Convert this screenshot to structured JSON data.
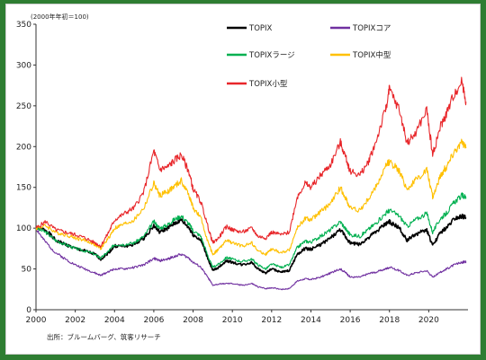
{
  "chart_data": {
    "type": "line",
    "unit_label": "(2000年年初＝100)",
    "source": "出所：ブルームバーグ、筑客リサーチ",
    "ylim": [
      0,
      350
    ],
    "yticks": [
      "0",
      "50",
      "100",
      "150",
      "200",
      "250",
      "300",
      "350"
    ],
    "xlim": [
      2000,
      2022
    ],
    "xticks": [
      "2000",
      "2002",
      "2004",
      "2006",
      "2008",
      "2010",
      "2012",
      "2014",
      "2016",
      "2018",
      "2020"
    ],
    "grid": false,
    "legend_position": "top-right",
    "series": [
      {
        "name": "TOPIX",
        "color": "#000000",
        "points": [
          [
            2000,
            100
          ],
          [
            2000.5,
            98
          ],
          [
            2001,
            85
          ],
          [
            2001.5,
            80
          ],
          [
            2002,
            75
          ],
          [
            2002.5,
            72
          ],
          [
            2003,
            68
          ],
          [
            2003.3,
            62
          ],
          [
            2003.7,
            70
          ],
          [
            2004,
            78
          ],
          [
            2004.5,
            78
          ],
          [
            2005,
            80
          ],
          [
            2005.5,
            88
          ],
          [
            2006,
            103
          ],
          [
            2006.3,
            95
          ],
          [
            2006.7,
            100
          ],
          [
            2007,
            105
          ],
          [
            2007.4,
            110
          ],
          [
            2007.8,
            100
          ],
          [
            2008,
            92
          ],
          [
            2008.4,
            85
          ],
          [
            2008.8,
            60
          ],
          [
            2009,
            48
          ],
          [
            2009.3,
            52
          ],
          [
            2009.7,
            60
          ],
          [
            2010,
            58
          ],
          [
            2010.5,
            55
          ],
          [
            2011,
            58
          ],
          [
            2011.3,
            50
          ],
          [
            2011.7,
            45
          ],
          [
            2012,
            50
          ],
          [
            2012.5,
            46
          ],
          [
            2012.9,
            48
          ],
          [
            2013.3,
            68
          ],
          [
            2013.7,
            75
          ],
          [
            2014,
            74
          ],
          [
            2014.5,
            80
          ],
          [
            2015,
            88
          ],
          [
            2015.5,
            98
          ],
          [
            2015.8,
            88
          ],
          [
            2016,
            82
          ],
          [
            2016.5,
            80
          ],
          [
            2016.9,
            88
          ],
          [
            2017.3,
            95
          ],
          [
            2017.8,
            105
          ],
          [
            2018,
            108
          ],
          [
            2018.5,
            100
          ],
          [
            2018.9,
            85
          ],
          [
            2019.3,
            92
          ],
          [
            2019.9,
            98
          ],
          [
            2020.2,
            78
          ],
          [
            2020.6,
            95
          ],
          [
            2020.9,
            100
          ],
          [
            2021.3,
            112
          ],
          [
            2021.7,
            115
          ],
          [
            2021.9,
            113
          ]
        ]
      },
      {
        "name": "TOPIXコア",
        "color": "#7030a0",
        "points": [
          [
            2000,
            100
          ],
          [
            2000.4,
            85
          ],
          [
            2001,
            70
          ],
          [
            2001.5,
            62
          ],
          [
            2002,
            55
          ],
          [
            2002.5,
            50
          ],
          [
            2003,
            45
          ],
          [
            2003.3,
            42
          ],
          [
            2003.7,
            47
          ],
          [
            2004,
            50
          ],
          [
            2004.5,
            50
          ],
          [
            2005,
            52
          ],
          [
            2005.5,
            55
          ],
          [
            2006,
            63
          ],
          [
            2006.3,
            60
          ],
          [
            2006.7,
            62
          ],
          [
            2007,
            65
          ],
          [
            2007.4,
            68
          ],
          [
            2007.8,
            63
          ],
          [
            2008,
            58
          ],
          [
            2008.4,
            52
          ],
          [
            2008.8,
            38
          ],
          [
            2009,
            30
          ],
          [
            2009.5,
            32
          ],
          [
            2010,
            32
          ],
          [
            2010.5,
            30
          ],
          [
            2011,
            32
          ],
          [
            2011.3,
            28
          ],
          [
            2011.7,
            26
          ],
          [
            2012,
            27
          ],
          [
            2012.5,
            25
          ],
          [
            2012.9,
            26
          ],
          [
            2013.3,
            35
          ],
          [
            2013.7,
            38
          ],
          [
            2014,
            37
          ],
          [
            2014.5,
            40
          ],
          [
            2015,
            45
          ],
          [
            2015.5,
            50
          ],
          [
            2015.8,
            45
          ],
          [
            2016,
            40
          ],
          [
            2016.5,
            40
          ],
          [
            2016.9,
            44
          ],
          [
            2017.3,
            46
          ],
          [
            2017.8,
            50
          ],
          [
            2018,
            52
          ],
          [
            2018.5,
            48
          ],
          [
            2018.9,
            42
          ],
          [
            2019.3,
            45
          ],
          [
            2019.9,
            48
          ],
          [
            2020.2,
            40
          ],
          [
            2020.6,
            46
          ],
          [
            2020.9,
            50
          ],
          [
            2021.3,
            55
          ],
          [
            2021.7,
            58
          ],
          [
            2021.9,
            59
          ]
        ]
      },
      {
        "name": "TOPIXラージ",
        "color": "#00b050",
        "points": [
          [
            2000,
            100
          ],
          [
            2000.5,
            95
          ],
          [
            2001,
            85
          ],
          [
            2001.5,
            80
          ],
          [
            2002,
            75
          ],
          [
            2002.5,
            72
          ],
          [
            2003,
            68
          ],
          [
            2003.3,
            63
          ],
          [
            2003.7,
            72
          ],
          [
            2004,
            80
          ],
          [
            2004.5,
            80
          ],
          [
            2005,
            82
          ],
          [
            2005.5,
            90
          ],
          [
            2006,
            108
          ],
          [
            2006.3,
            100
          ],
          [
            2006.7,
            104
          ],
          [
            2007,
            110
          ],
          [
            2007.4,
            115
          ],
          [
            2007.8,
            105
          ],
          [
            2008,
            97
          ],
          [
            2008.4,
            90
          ],
          [
            2008.8,
            63
          ],
          [
            2009,
            52
          ],
          [
            2009.3,
            56
          ],
          [
            2009.7,
            64
          ],
          [
            2010,
            62
          ],
          [
            2010.5,
            59
          ],
          [
            2011,
            62
          ],
          [
            2011.3,
            55
          ],
          [
            2011.7,
            50
          ],
          [
            2012,
            56
          ],
          [
            2012.5,
            52
          ],
          [
            2012.9,
            55
          ],
          [
            2013.3,
            76
          ],
          [
            2013.7,
            84
          ],
          [
            2014,
            83
          ],
          [
            2014.5,
            90
          ],
          [
            2015,
            98
          ],
          [
            2015.5,
            108
          ],
          [
            2015.8,
            98
          ],
          [
            2016,
            92
          ],
          [
            2016.5,
            90
          ],
          [
            2016.9,
            98
          ],
          [
            2017.3,
            106
          ],
          [
            2017.8,
            118
          ],
          [
            2018,
            122
          ],
          [
            2018.5,
            115
          ],
          [
            2018.9,
            102
          ],
          [
            2019.3,
            110
          ],
          [
            2019.9,
            118
          ],
          [
            2020.2,
            95
          ],
          [
            2020.6,
            112
          ],
          [
            2020.9,
            118
          ],
          [
            2021.3,
            132
          ],
          [
            2021.7,
            140
          ],
          [
            2021.9,
            138
          ]
        ]
      },
      {
        "name": "TOPIX中型",
        "color": "#ffc000",
        "points": [
          [
            2000,
            100
          ],
          [
            2000.5,
            103
          ],
          [
            2001,
            95
          ],
          [
            2001.5,
            92
          ],
          [
            2002,
            88
          ],
          [
            2002.5,
            85
          ],
          [
            2003,
            80
          ],
          [
            2003.3,
            75
          ],
          [
            2003.7,
            88
          ],
          [
            2004,
            100
          ],
          [
            2004.5,
            105
          ],
          [
            2005,
            110
          ],
          [
            2005.5,
            125
          ],
          [
            2006,
            155
          ],
          [
            2006.3,
            140
          ],
          [
            2006.7,
            145
          ],
          [
            2007,
            150
          ],
          [
            2007.4,
            158
          ],
          [
            2007.8,
            140
          ],
          [
            2008,
            125
          ],
          [
            2008.4,
            112
          ],
          [
            2008.8,
            80
          ],
          [
            2009,
            68
          ],
          [
            2009.3,
            74
          ],
          [
            2009.7,
            85
          ],
          [
            2010,
            82
          ],
          [
            2010.5,
            78
          ],
          [
            2011,
            82
          ],
          [
            2011.3,
            72
          ],
          [
            2011.7,
            68
          ],
          [
            2012,
            74
          ],
          [
            2012.5,
            70
          ],
          [
            2012.9,
            73
          ],
          [
            2013.3,
            100
          ],
          [
            2013.7,
            112
          ],
          [
            2014,
            110
          ],
          [
            2014.5,
            120
          ],
          [
            2015,
            130
          ],
          [
            2015.5,
            150
          ],
          [
            2015.8,
            135
          ],
          [
            2016,
            125
          ],
          [
            2016.5,
            122
          ],
          [
            2016.9,
            135
          ],
          [
            2017.3,
            150
          ],
          [
            2017.8,
            175
          ],
          [
            2018,
            182
          ],
          [
            2018.5,
            170
          ],
          [
            2018.9,
            148
          ],
          [
            2019.3,
            158
          ],
          [
            2019.9,
            172
          ],
          [
            2020.2,
            138
          ],
          [
            2020.6,
            165
          ],
          [
            2020.9,
            175
          ],
          [
            2021.3,
            195
          ],
          [
            2021.7,
            205
          ],
          [
            2021.9,
            198
          ]
        ]
      },
      {
        "name": "TOPIX小型",
        "color": "#e8262a",
        "points": [
          [
            2000,
            100
          ],
          [
            2000.5,
            108
          ],
          [
            2001,
            98
          ],
          [
            2001.5,
            95
          ],
          [
            2002,
            92
          ],
          [
            2002.5,
            88
          ],
          [
            2003,
            82
          ],
          [
            2003.3,
            78
          ],
          [
            2003.7,
            95
          ],
          [
            2004,
            110
          ],
          [
            2004.5,
            118
          ],
          [
            2005,
            125
          ],
          [
            2005.5,
            145
          ],
          [
            2006,
            195
          ],
          [
            2006.3,
            172
          ],
          [
            2006.7,
            175
          ],
          [
            2007,
            182
          ],
          [
            2007.4,
            190
          ],
          [
            2007.8,
            168
          ],
          [
            2008,
            148
          ],
          [
            2008.4,
            132
          ],
          [
            2008.8,
            98
          ],
          [
            2009,
            82
          ],
          [
            2009.3,
            88
          ],
          [
            2009.7,
            102
          ],
          [
            2010,
            98
          ],
          [
            2010.5,
            95
          ],
          [
            2011,
            100
          ],
          [
            2011.3,
            90
          ],
          [
            2011.7,
            88
          ],
          [
            2012,
            95
          ],
          [
            2012.5,
            92
          ],
          [
            2012.9,
            95
          ],
          [
            2013.3,
            138
          ],
          [
            2013.7,
            155
          ],
          [
            2014,
            150
          ],
          [
            2014.5,
            165
          ],
          [
            2015,
            178
          ],
          [
            2015.5,
            205
          ],
          [
            2015.8,
            185
          ],
          [
            2016,
            170
          ],
          [
            2016.5,
            165
          ],
          [
            2016.9,
            180
          ],
          [
            2017.3,
            205
          ],
          [
            2017.8,
            245
          ],
          [
            2018,
            270
          ],
          [
            2018.5,
            245
          ],
          [
            2018.9,
            205
          ],
          [
            2019.3,
            215
          ],
          [
            2019.9,
            245
          ],
          [
            2020.2,
            190
          ],
          [
            2020.6,
            225
          ],
          [
            2020.9,
            240
          ],
          [
            2021.3,
            265
          ],
          [
            2021.7,
            280
          ],
          [
            2021.9,
            255
          ]
        ]
      }
    ]
  }
}
